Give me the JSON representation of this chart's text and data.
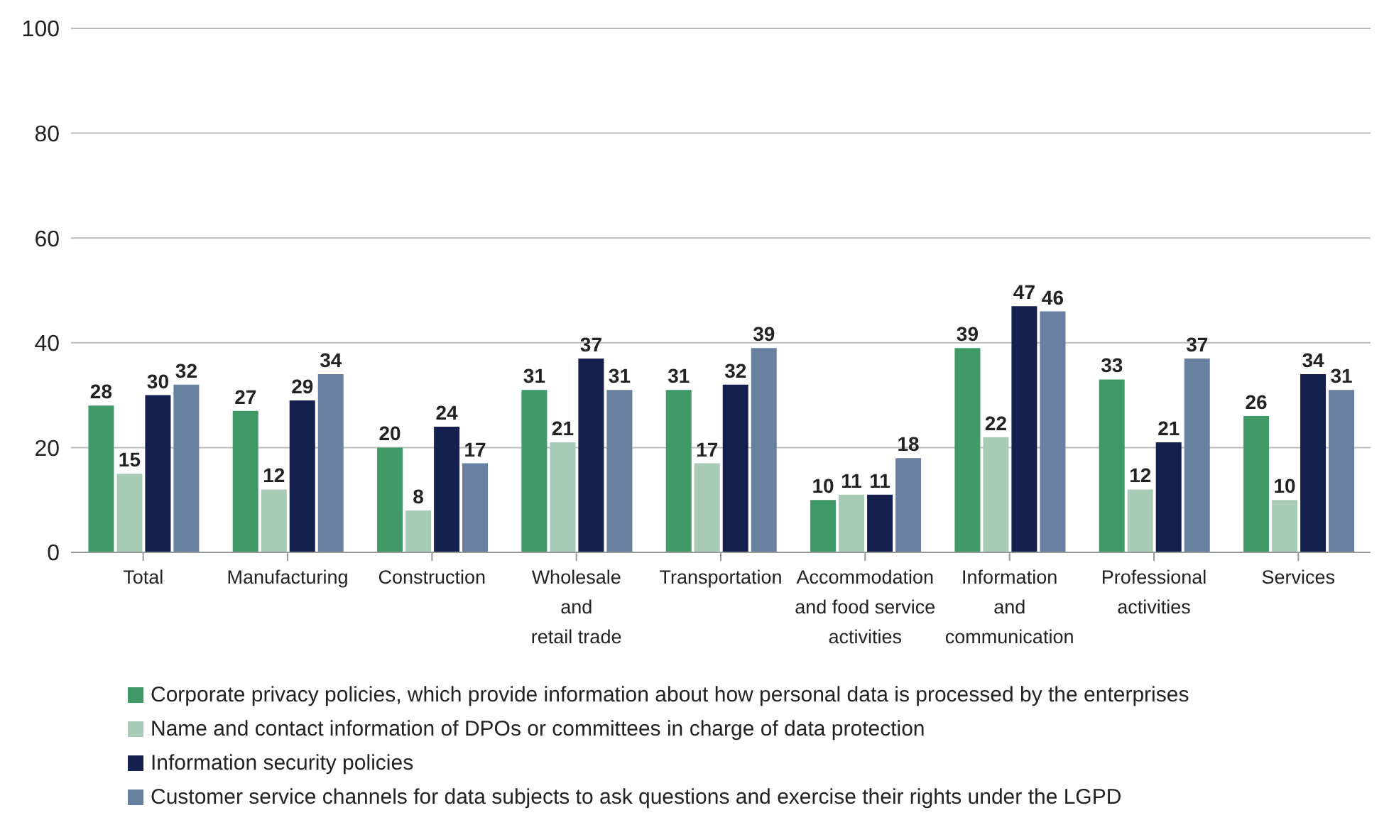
{
  "chart_data": {
    "type": "bar",
    "categories": [
      "Total",
      "Manufacturing",
      "Construction",
      "Wholesale\nand\nretail trade",
      "Transportation",
      "Accommodation\nand food service\nactivities",
      "Information\nand\ncommunication",
      "Professional\nactivities",
      "Services"
    ],
    "series": [
      {
        "name": "Corporate privacy policies, which provide information about how personal data is processed by the enterprises",
        "color": "#3f9a68",
        "values": [
          28,
          27,
          20,
          31,
          31,
          10,
          39,
          33,
          26
        ]
      },
      {
        "name": "Name and contact information of DPOs or committees in charge of data protection",
        "color": "#a8cbb7",
        "values": [
          15,
          12,
          8,
          21,
          17,
          11,
          22,
          12,
          10
        ]
      },
      {
        "name": "Information security policies",
        "color": "#15204f",
        "values": [
          30,
          29,
          24,
          37,
          32,
          11,
          47,
          21,
          34
        ]
      },
      {
        "name": "Customer service channels for data subjects to ask questions and exercise their rights under the LGPD",
        "color": "#67809f",
        "values": [
          32,
          34,
          17,
          31,
          39,
          18,
          46,
          37,
          31
        ]
      }
    ],
    "ylim": [
      0,
      100
    ],
    "yticks": [
      0,
      20,
      40,
      60,
      80,
      100
    ],
    "grid": "y",
    "legend": "bottom",
    "data_labels": true
  }
}
